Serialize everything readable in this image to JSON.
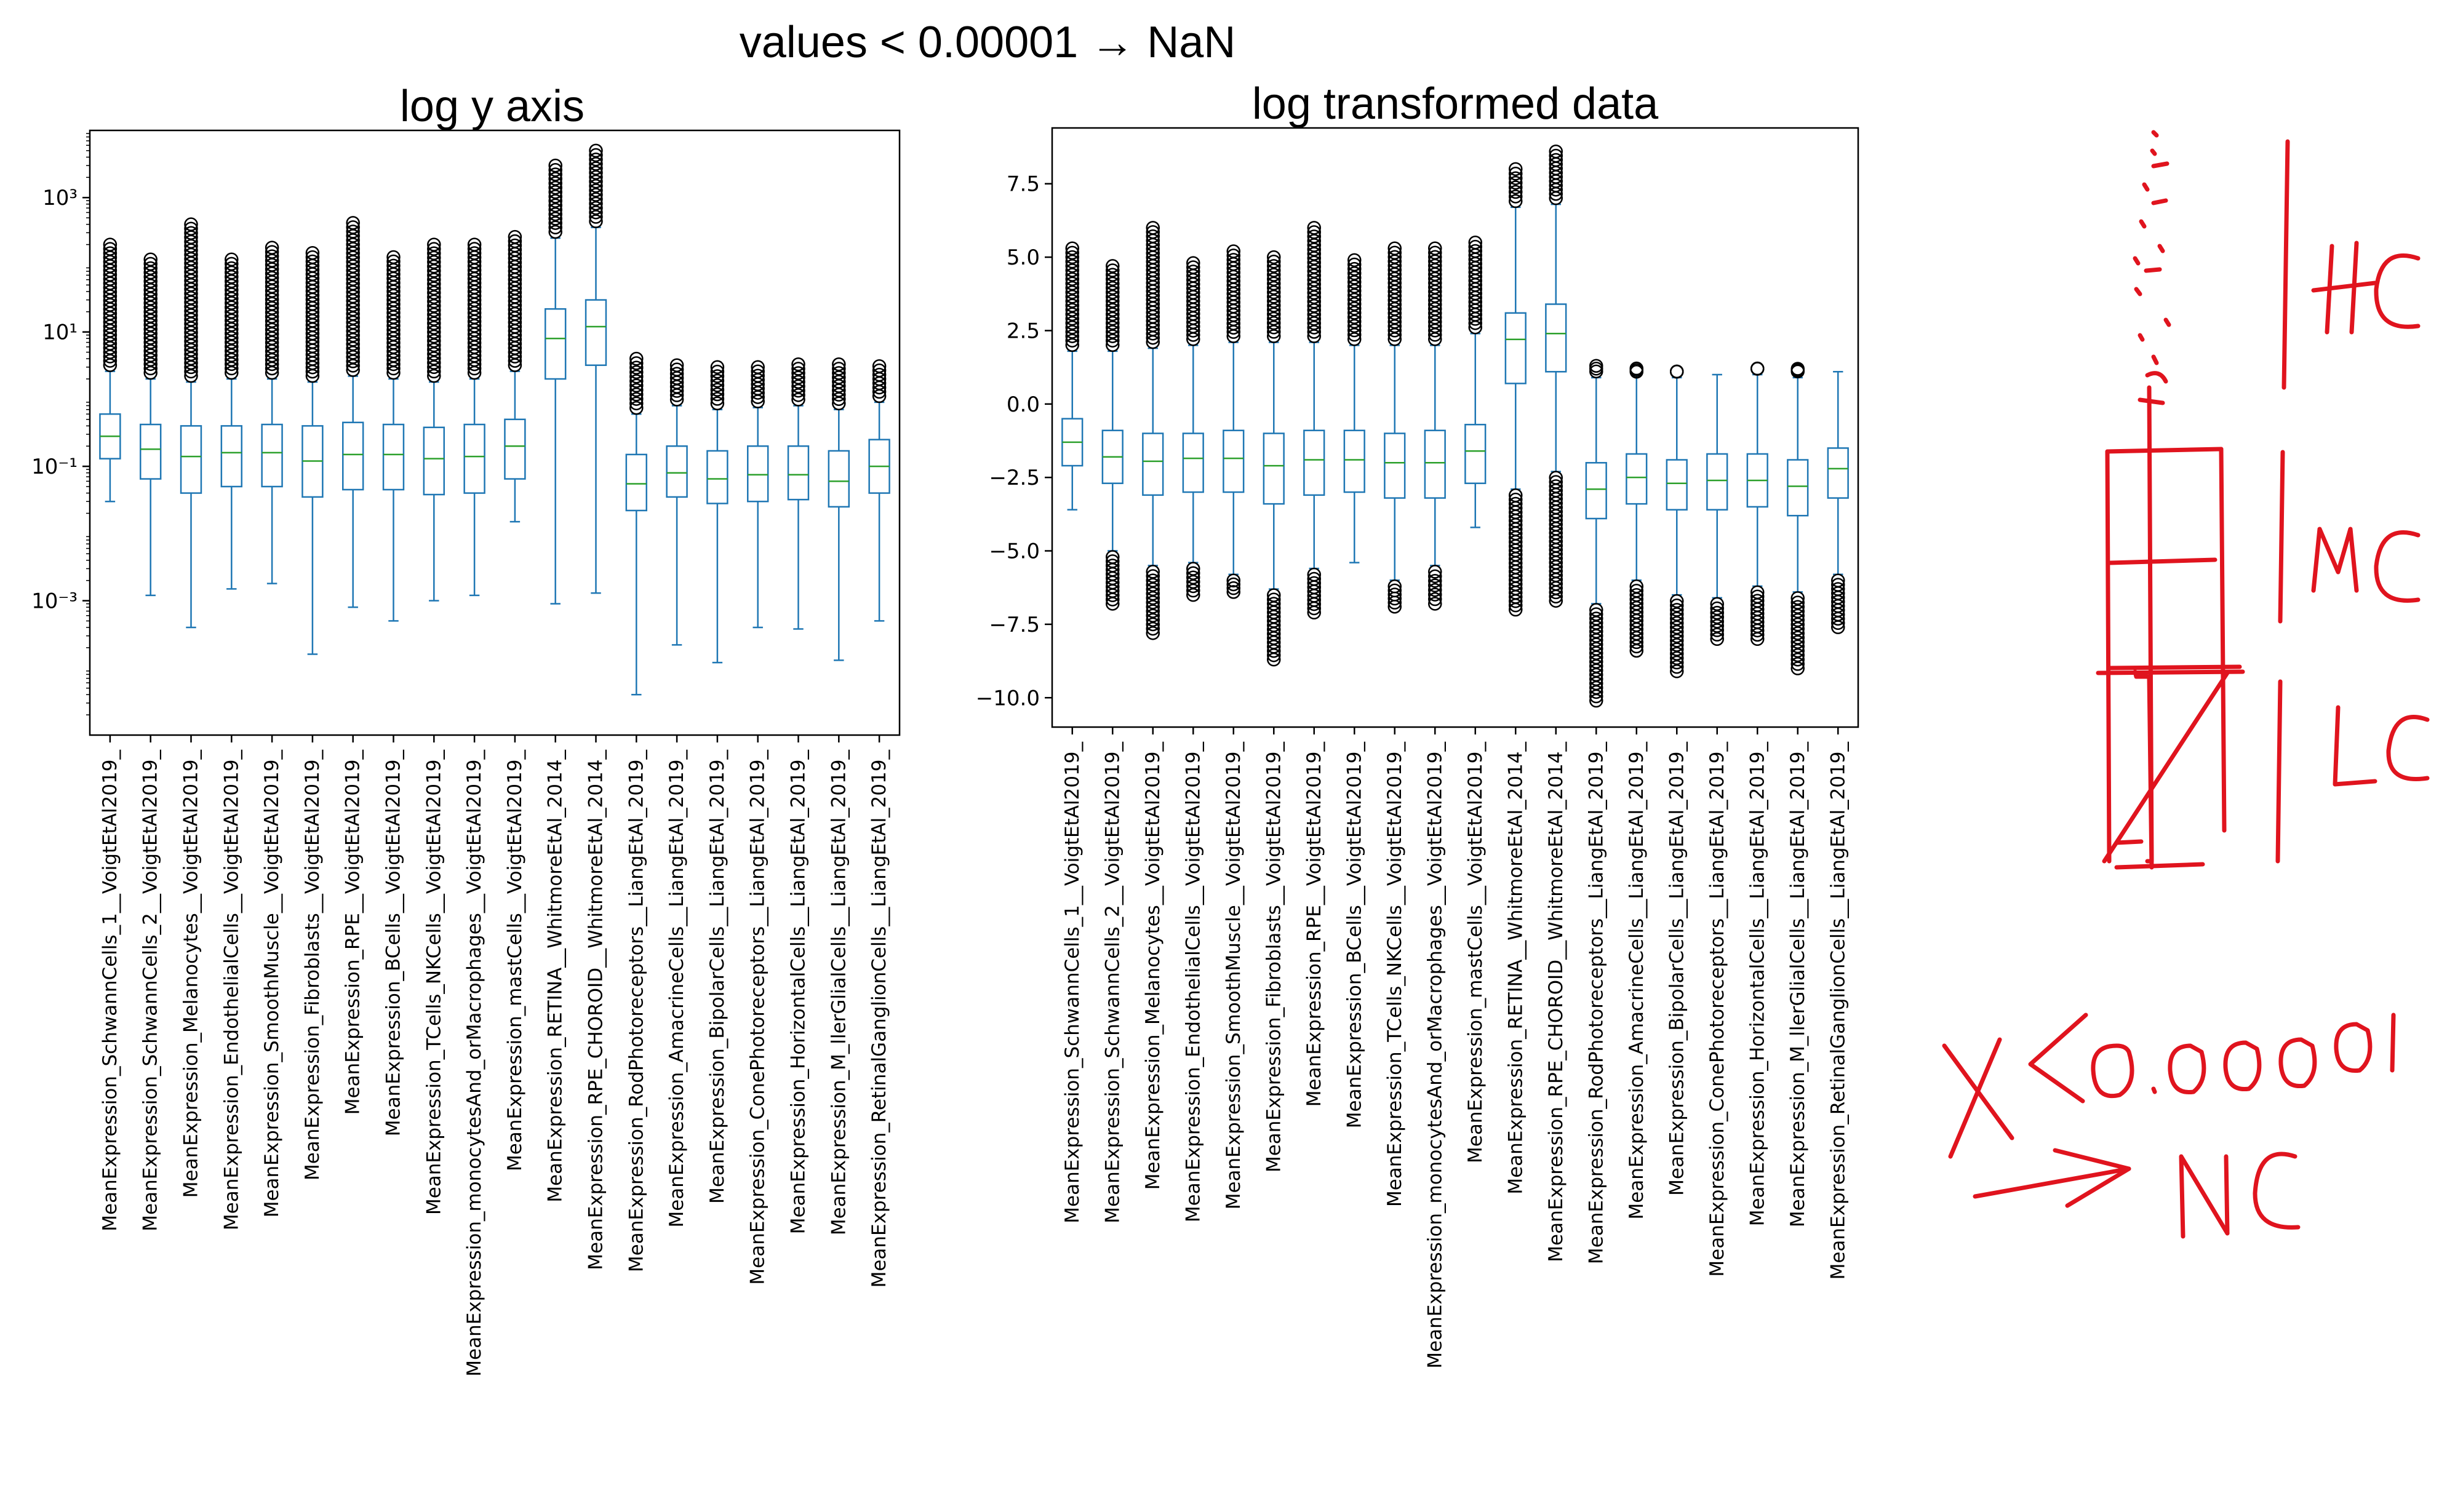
{
  "page": {
    "title": "values < 0.00001 → NaN"
  },
  "charts_titles": {
    "left": "log y axis",
    "right": "log transformed data"
  },
  "chart_data": [
    {
      "type": "box",
      "title": "log y axis",
      "yscale": "log",
      "ylim": [
        1e-05,
        10000
      ],
      "yticks": [
        0.001,
        0.1,
        10,
        1000
      ],
      "ytick_labels": [
        "10⁻³",
        "10⁻¹",
        "10¹",
        "10³"
      ],
      "grid": false,
      "colors": {
        "box": "#1f77b4",
        "median": "#2ca02c",
        "flier": "#000000"
      },
      "categories": [
        "MeanExpression_SchwannCells_1__VoigtEtAl2019_",
        "MeanExpression_SchwannCells_2__VoigtEtAl2019_",
        "MeanExpression_Melanocytes__VoigtEtAl2019_",
        "MeanExpression_EndothelialCells__VoigtEtAl2019_",
        "MeanExpression_SmoothMuscle__VoigtEtAl2019_",
        "MeanExpression_Fibroblasts__VoigtEtAl2019_",
        "MeanExpression_RPE__VoigtEtAl2019_",
        "MeanExpression_BCells__VoigtEtAl2019_",
        "MeanExpression_TCells_NKCells__VoigtEtAl2019_",
        "MeanExpression_monocytesAnd_orMacrophages__VoigtEtAl2019_",
        "MeanExpression_mastCells__VoigtEtAl2019_",
        "MeanExpression_RETINA__WhitmoreEtAl_2014_",
        "MeanExpression_RPE_CHOROID__WhitmoreEtAl_2014_",
        "MeanExpression_RodPhotoreceptors__LiangEtAl_2019_",
        "MeanExpression_AmacrineCells__LiangEtAl_2019_",
        "MeanExpression_BipolarCells__LiangEtAl_2019_",
        "MeanExpression_ConePhotoreceptors__LiangEtAl_2019_",
        "MeanExpression_HorizontalCells__LiangEtAl_2019_",
        "MeanExpression_M_llerGlialCells__LiangEtAl_2019_",
        "MeanExpression_RetinalGanglionCells__LiangEtAl_2019_"
      ],
      "boxes": [
        {
          "whislo": 0.03,
          "q1": 0.13,
          "med": 0.28,
          "q3": 0.6,
          "whishi": 2.6,
          "flier_max": 200
        },
        {
          "whislo": 0.0012,
          "q1": 0.065,
          "med": 0.18,
          "q3": 0.42,
          "whishi": 2.0,
          "flier_max": 120
        },
        {
          "whislo": 0.0004,
          "q1": 0.04,
          "med": 0.14,
          "q3": 0.4,
          "whishi": 1.8,
          "flier_max": 400
        },
        {
          "whislo": 0.0015,
          "q1": 0.05,
          "med": 0.16,
          "q3": 0.4,
          "whishi": 2.0,
          "flier_max": 120
        },
        {
          "whislo": 0.0018,
          "q1": 0.05,
          "med": 0.16,
          "q3": 0.42,
          "whishi": 2.0,
          "flier_max": 180
        },
        {
          "whislo": 0.00016,
          "q1": 0.035,
          "med": 0.12,
          "q3": 0.4,
          "whishi": 1.8,
          "flier_max": 150
        },
        {
          "whislo": 0.0008,
          "q1": 0.045,
          "med": 0.15,
          "q3": 0.45,
          "whishi": 2.2,
          "flier_max": 420
        },
        {
          "whislo": 0.0005,
          "q1": 0.045,
          "med": 0.15,
          "q3": 0.42,
          "whishi": 2.0,
          "flier_max": 130
        },
        {
          "whislo": 0.001,
          "q1": 0.038,
          "med": 0.13,
          "q3": 0.38,
          "whishi": 1.8,
          "flier_max": 200
        },
        {
          "whislo": 0.0012,
          "q1": 0.04,
          "med": 0.14,
          "q3": 0.42,
          "whishi": 2.0,
          "flier_max": 200
        },
        {
          "whislo": 0.015,
          "q1": 0.065,
          "med": 0.2,
          "q3": 0.5,
          "whishi": 2.6,
          "flier_max": 260
        },
        {
          "whislo": 0.0009,
          "q1": 2.0,
          "med": 8.0,
          "q3": 22.0,
          "whishi": 250,
          "flier_max": 3000
        },
        {
          "whislo": 0.0013,
          "q1": 3.2,
          "med": 12.0,
          "q3": 30.0,
          "whishi": 360,
          "flier_max": 5000
        },
        {
          "whislo": 4e-05,
          "q1": 0.022,
          "med": 0.055,
          "q3": 0.15,
          "whishi": 0.6,
          "flier_max": 4.0
        },
        {
          "whislo": 0.00022,
          "q1": 0.035,
          "med": 0.08,
          "q3": 0.2,
          "whishi": 0.8,
          "flier_max": 3.2
        },
        {
          "whislo": 0.00012,
          "q1": 0.028,
          "med": 0.065,
          "q3": 0.17,
          "whishi": 0.7,
          "flier_max": 3.0
        },
        {
          "whislo": 0.0004,
          "q1": 0.03,
          "med": 0.075,
          "q3": 0.2,
          "whishi": 0.75,
          "flier_max": 3.0
        },
        {
          "whislo": 0.00038,
          "q1": 0.032,
          "med": 0.075,
          "q3": 0.2,
          "whishi": 0.8,
          "flier_max": 3.3
        },
        {
          "whislo": 0.00013,
          "q1": 0.025,
          "med": 0.06,
          "q3": 0.17,
          "whishi": 0.7,
          "flier_max": 3.3
        },
        {
          "whislo": 0.0005,
          "q1": 0.04,
          "med": 0.1,
          "q3": 0.25,
          "whishi": 0.9,
          "flier_max": 3.1
        }
      ]
    },
    {
      "type": "box",
      "title": "log transformed data",
      "yscale": "linear",
      "ylim": [
        -11.0,
        9.4
      ],
      "yticks": [
        -10.0,
        -7.5,
        -5.0,
        -2.5,
        0.0,
        2.5,
        5.0,
        7.5
      ],
      "ytick_labels": [
        "−10.0",
        "−7.5",
        "−5.0",
        "−2.5",
        "0.0",
        "2.5",
        "5.0",
        "7.5"
      ],
      "grid": false,
      "colors": {
        "box": "#1f77b4",
        "median": "#2ca02c",
        "flier": "#000000"
      },
      "categories": [
        "MeanExpression_SchwannCells_1__VoigtEtAl2019_",
        "MeanExpression_SchwannCells_2__VoigtEtAl2019_",
        "MeanExpression_Melanocytes__VoigtEtAl2019_",
        "MeanExpression_EndothelialCells__VoigtEtAl2019_",
        "MeanExpression_SmoothMuscle__VoigtEtAl2019_",
        "MeanExpression_Fibroblasts__VoigtEtAl2019_",
        "MeanExpression_RPE__VoigtEtAl2019_",
        "MeanExpression_BCells__VoigtEtAl2019_",
        "MeanExpression_TCells_NKCells__VoigtEtAl2019_",
        "MeanExpression_monocytesAnd_orMacrophages__VoigtEtAl2019_",
        "MeanExpression_mastCells__VoigtEtAl2019_",
        "MeanExpression_RETINA__WhitmoreEtAl_2014_",
        "MeanExpression_RPE_CHOROID__WhitmoreEtAl_2014_",
        "MeanExpression_RodPhotoreceptors__LiangEtAl_2019_",
        "MeanExpression_AmacrineCells__LiangEtAl_2019_",
        "MeanExpression_BipolarCells__LiangEtAl_2019_",
        "MeanExpression_ConePhotoreceptors__LiangEtAl_2019_",
        "MeanExpression_HorizontalCells__LiangEtAl_2019_",
        "MeanExpression_M_llerGlialCells__LiangEtAl_2019_",
        "MeanExpression_RetinalGanglionCells__LiangEtAl_2019_"
      ],
      "boxes": [
        {
          "whislo": -3.6,
          "q1": -2.1,
          "med": -1.3,
          "q3": -0.5,
          "whishi": 1.8,
          "flier_lo": null,
          "flier_hi": 5.3
        },
        {
          "whislo": -5.0,
          "q1": -2.7,
          "med": -1.8,
          "q3": -0.9,
          "whishi": 1.8,
          "flier_lo": -6.8,
          "flier_hi": 4.7
        },
        {
          "whislo": -5.5,
          "q1": -3.1,
          "med": -1.95,
          "q3": -1.0,
          "whishi": 1.9,
          "flier_lo": -7.8,
          "flier_hi": 6.0
        },
        {
          "whislo": -5.4,
          "q1": -3.0,
          "med": -1.85,
          "q3": -1.0,
          "whishi": 2.0,
          "flier_lo": -6.5,
          "flier_hi": 4.8
        },
        {
          "whislo": -5.8,
          "q1": -3.0,
          "med": -1.85,
          "q3": -0.9,
          "whishi": 2.1,
          "flier_lo": -6.4,
          "flier_hi": 5.2
        },
        {
          "whislo": -6.3,
          "q1": -3.4,
          "med": -2.1,
          "q3": -1.0,
          "whishi": 2.1,
          "flier_lo": -8.7,
          "flier_hi": 5.0
        },
        {
          "whislo": -5.6,
          "q1": -3.1,
          "med": -1.9,
          "q3": -0.9,
          "whishi": 2.1,
          "flier_lo": -7.1,
          "flier_hi": 6.0
        },
        {
          "whislo": -5.4,
          "q1": -3.0,
          "med": -1.9,
          "q3": -0.9,
          "whishi": 2.0,
          "flier_lo": null,
          "flier_hi": 4.9
        },
        {
          "whislo": -6.0,
          "q1": -3.2,
          "med": -2.0,
          "q3": -1.0,
          "whishi": 2.0,
          "flier_lo": -6.9,
          "flier_hi": 5.3
        },
        {
          "whislo": -5.5,
          "q1": -3.2,
          "med": -2.0,
          "q3": -0.9,
          "whishi": 2.0,
          "flier_lo": -6.8,
          "flier_hi": 5.3
        },
        {
          "whislo": -4.2,
          "q1": -2.7,
          "med": -1.6,
          "q3": -0.7,
          "whishi": 2.4,
          "flier_lo": null,
          "flier_hi": 5.5
        },
        {
          "whislo": -2.9,
          "q1": 0.7,
          "med": 2.2,
          "q3": 3.1,
          "whishi": 6.7,
          "flier_lo": -7.0,
          "flier_hi": 8.0
        },
        {
          "whislo": -2.3,
          "q1": 1.1,
          "med": 2.4,
          "q3": 3.4,
          "whishi": 6.8,
          "flier_lo": -6.7,
          "flier_hi": 8.6
        },
        {
          "whislo": -6.8,
          "q1": -3.9,
          "med": -2.9,
          "q3": -2.0,
          "whishi": 0.9,
          "flier_lo": -10.1,
          "flier_hi": 1.3
        },
        {
          "whislo": -6.0,
          "q1": -3.4,
          "med": -2.5,
          "q3": -1.7,
          "whishi": 1.0,
          "flier_lo": -8.4,
          "flier_hi": 1.1
        },
        {
          "whislo": -6.5,
          "q1": -3.6,
          "med": -2.7,
          "q3": -1.9,
          "whishi": 0.9,
          "flier_lo": -9.1,
          "flier_hi": 1.1
        },
        {
          "whislo": -6.6,
          "q1": -3.6,
          "med": -2.6,
          "q3": -1.7,
          "whishi": 1.0,
          "flier_lo": -8.0,
          "flier_hi": null
        },
        {
          "whislo": -6.2,
          "q1": -3.5,
          "med": -2.6,
          "q3": -1.7,
          "whishi": 1.0,
          "flier_lo": -8.0,
          "flier_hi": 1.2
        },
        {
          "whislo": -6.4,
          "q1": -3.8,
          "med": -2.8,
          "q3": -1.9,
          "whishi": 0.9,
          "flier_lo": -9.0,
          "flier_hi": 1.2
        },
        {
          "whislo": -5.8,
          "q1": -3.2,
          "med": -2.2,
          "q3": -1.5,
          "whishi": 1.1,
          "flier_lo": -7.6,
          "flier_hi": null
        }
      ]
    }
  ],
  "annotations": {
    "labels": [
      "HC",
      "MC",
      "LC"
    ],
    "threshold_text": "X<0.00001",
    "arrow_target": "NC"
  }
}
